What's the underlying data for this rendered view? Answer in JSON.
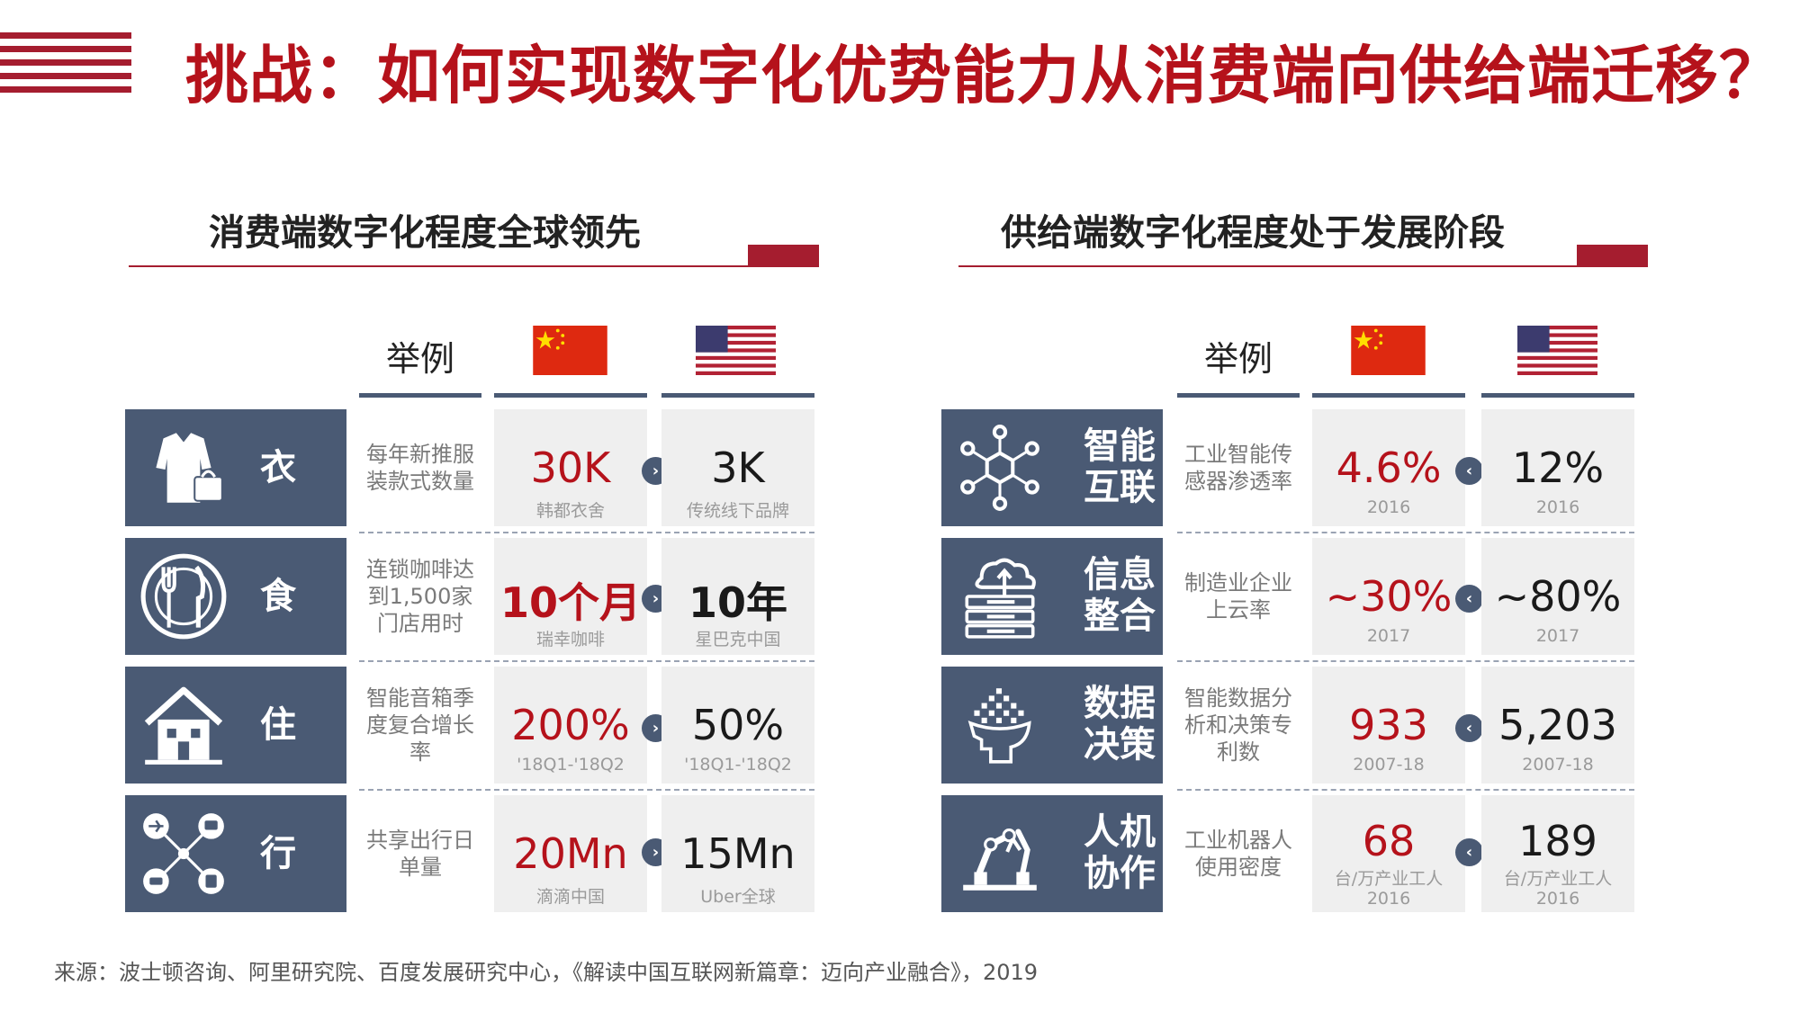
{
  "title": "挑战：如何实现数字化优势能力从消费端向供给端迁移？",
  "left": {
    "section_title": "消费端数字化程度全球领先",
    "col_example": "举例",
    "rows": [
      {
        "category": "衣",
        "icon": "clothing-icon",
        "example": "每年新推服装款式数量",
        "cn_value": "30K",
        "cn_sub": "韩都衣舍",
        "us_value": "3K",
        "us_sub": "传统线下品牌"
      },
      {
        "category": "食",
        "icon": "dining-icon",
        "example": "连锁咖啡达到1,500家门店用时",
        "cn_value": "10个月",
        "cn_sub": "瑞幸咖啡",
        "us_value": "10年",
        "us_sub": "星巴克中国"
      },
      {
        "category": "住",
        "icon": "house-icon",
        "example": "智能音箱季度复合增长率",
        "cn_value": "200%",
        "cn_sub": "'18Q1-'18Q2",
        "us_value": "50%",
        "us_sub": "'18Q1-'18Q2"
      },
      {
        "category": "行",
        "icon": "transport-network-icon",
        "example": "共享出行日单量",
        "cn_value": "20Mn",
        "cn_sub": "滴滴中国",
        "us_value": "15Mn",
        "us_sub": "Uber全球"
      }
    ]
  },
  "right": {
    "section_title": "供给端数字化程度处于发展阶段",
    "col_example": "举例",
    "rows": [
      {
        "category_line1": "智能",
        "category_line2": "互联",
        "icon": "network-nodes-icon",
        "example": "工业智能传感器渗透率",
        "cn_value": "4.6%",
        "cn_sub": "2016",
        "us_value": "12%",
        "us_sub": "2016"
      },
      {
        "category_line1": "信息",
        "category_line2": "整合",
        "icon": "cloud-server-icon",
        "example": "制造业企业上云率",
        "cn_value": "~30%",
        "cn_sub": "2017",
        "us_value": "~80%",
        "us_sub": "2017"
      },
      {
        "category_line1": "数据",
        "category_line2": "决策",
        "icon": "brain-data-icon",
        "example": "智能数据分析和决策专利数",
        "cn_value": "933",
        "cn_sub": "2007-18",
        "us_value": "5,203",
        "us_sub": "2007-18"
      },
      {
        "category_line1": "人机",
        "category_line2": "协作",
        "icon": "robot-arm-icon",
        "example": "工业机器人使用密度",
        "cn_value": "68",
        "cn_sub": "台/万产业工人",
        "cn_sub2": "2016",
        "us_value": "189",
        "us_sub": "台/万产业工人",
        "us_sub2": "2016"
      }
    ]
  },
  "arrow_left_glyph": "›",
  "arrow_right_glyph": "‹",
  "source": "来源：波士顿咨询、阿里研究院、百度发展研究中心，《解读中国互联网新篇章：迈向产业融合》，2019",
  "colors": {
    "accent_red": "#b5121b",
    "slate": "#4a5a74",
    "cell_gray": "#efefef"
  }
}
